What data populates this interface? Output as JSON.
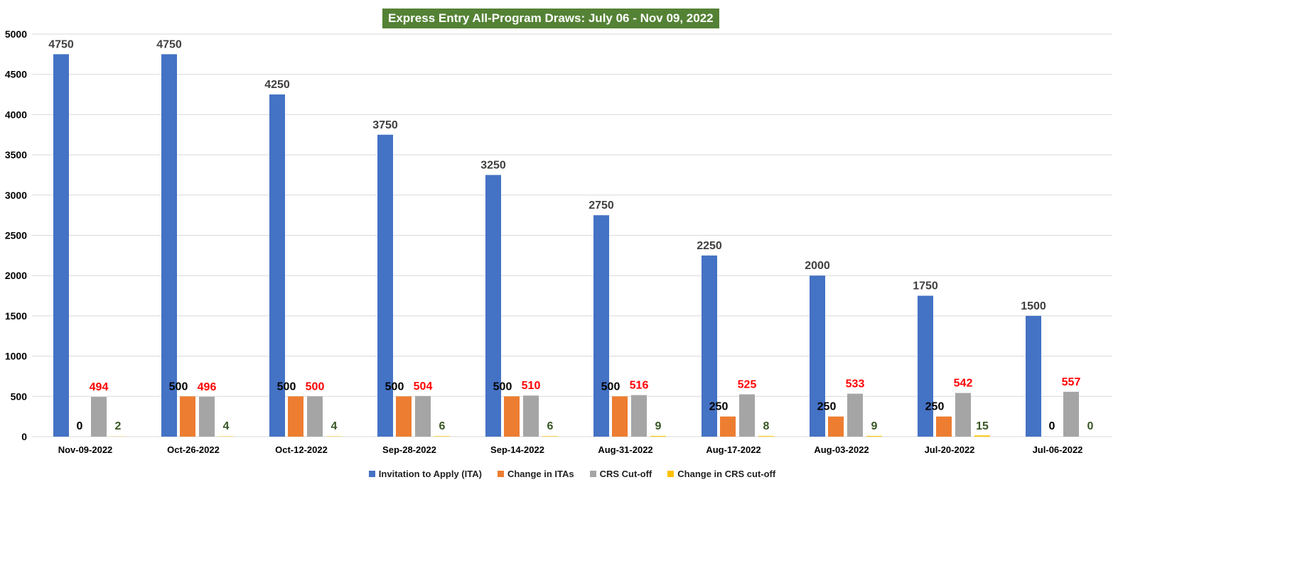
{
  "chart_data": {
    "type": "bar",
    "title": "Express Entry All-Program Draws: July 06 - Nov 09, 2022",
    "xlabel": "",
    "ylabel": "",
    "ylim": [
      0,
      5000
    ],
    "yticks": [
      0,
      500,
      1000,
      1500,
      2000,
      2500,
      3000,
      3500,
      4000,
      4500,
      5000
    ],
    "grid": true,
    "legend_position": "bottom",
    "categories": [
      "Nov-09-2022",
      "Oct-26-2022",
      "Oct-12-2022",
      "Sep-28-2022",
      "Sep-14-2022",
      "Aug-31-2022",
      "Aug-17-2022",
      "Aug-03-2022",
      "Jul-20-2022",
      "Jul-06-2022"
    ],
    "series": [
      {
        "name": "Invitation to Apply (ITA)",
        "color": "#4472C4",
        "label_color": "#404040",
        "values": [
          4750,
          4750,
          4250,
          3750,
          3250,
          2750,
          2250,
          2000,
          1750,
          1500
        ]
      },
      {
        "name": "Change in ITAs",
        "color": "#ED7D31",
        "label_color": "#000000",
        "values": [
          0,
          500,
          500,
          500,
          500,
          500,
          250,
          250,
          250,
          0
        ]
      },
      {
        "name": "CRS Cut-off",
        "color": "#A5A5A5",
        "label_color": "#FF0000",
        "values": [
          494,
          496,
          500,
          504,
          510,
          516,
          525,
          533,
          542,
          557
        ]
      },
      {
        "name": "Change in CRS cut-off",
        "color": "#FFC000",
        "label_color": "#375623",
        "values": [
          2,
          4,
          4,
          6,
          6,
          9,
          8,
          9,
          15,
          0
        ]
      }
    ]
  }
}
